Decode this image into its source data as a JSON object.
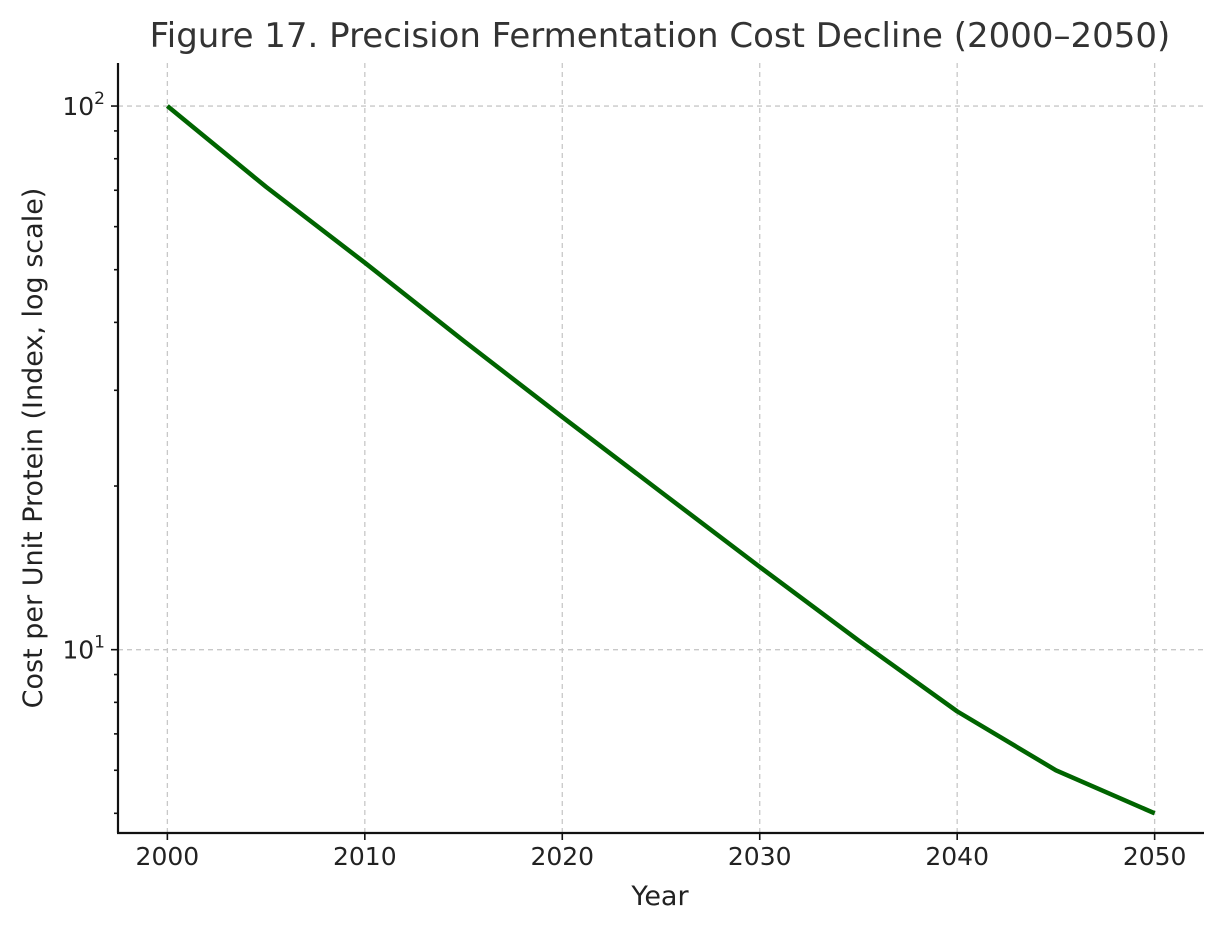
{
  "chart_data": {
    "type": "line",
    "title": "Figure 17. Precision Fermentation Cost Decline (2000–2050)",
    "xlabel": "Year",
    "ylabel": "Cost per Unit Protein (Index, log scale)",
    "x": [
      2000,
      2005,
      2010,
      2015,
      2020,
      2025,
      2030,
      2035,
      2040,
      2045,
      2050
    ],
    "series": [
      {
        "values": [
          100,
          71,
          51.5,
          37,
          26.8,
          19.5,
          14.2,
          10.4,
          7.7,
          6.0,
          5.0
        ],
        "color": "#006400"
      }
    ],
    "xlim": [
      1997.5,
      2052.5
    ],
    "ylim": [
      4.6,
      120
    ],
    "y_scale": "log",
    "x_ticks": [
      2000,
      2010,
      2020,
      2030,
      2040,
      2050
    ],
    "x_tick_labels": [
      "2000",
      "2010",
      "2020",
      "2030",
      "2040",
      "2050"
    ],
    "y_major_ticks": [
      10,
      100
    ],
    "y_tick_labels": [
      {
        "base": "10",
        "exp": "1"
      },
      {
        "base": "10",
        "exp": "2"
      }
    ],
    "y_minor_ticks": [
      5,
      6,
      7,
      8,
      9,
      20,
      30,
      40,
      50,
      60,
      70,
      80,
      90
    ],
    "grid": true,
    "legend": "none"
  }
}
